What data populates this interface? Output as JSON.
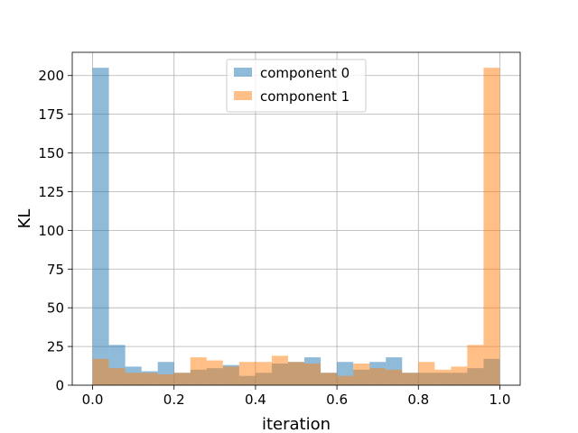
{
  "chart_data": {
    "type": "bar",
    "subtype": "overlaid-histogram",
    "title": "",
    "xlabel": "iteration",
    "ylabel": "KL",
    "xlim": [
      -0.05,
      1.05
    ],
    "ylim": [
      0,
      215
    ],
    "xticks": [
      0.0,
      0.2,
      0.4,
      0.6,
      0.8,
      1.0
    ],
    "xtick_labels": [
      "0.0",
      "0.2",
      "0.4",
      "0.6",
      "0.8",
      "1.0"
    ],
    "yticks": [
      0,
      25,
      50,
      75,
      100,
      125,
      150,
      175,
      200
    ],
    "ytick_labels": [
      "0",
      "25",
      "50",
      "75",
      "100",
      "125",
      "150",
      "175",
      "200"
    ],
    "grid": true,
    "legend_position": "upper center",
    "bin_edges": [
      0.0,
      0.04,
      0.08,
      0.12,
      0.16,
      0.2,
      0.24,
      0.28,
      0.32,
      0.36,
      0.4,
      0.44,
      0.48,
      0.52,
      0.56,
      0.6,
      0.64,
      0.68,
      0.72,
      0.76,
      0.8,
      0.84,
      0.88,
      0.92,
      0.96,
      1.0
    ],
    "series": [
      {
        "name": "component 0",
        "color": "#1f77b4",
        "alpha": 0.5,
        "values": [
          205,
          26,
          12,
          9,
          15,
          8,
          10,
          11,
          13,
          6,
          8,
          14,
          15,
          18,
          8,
          15,
          10,
          15,
          18,
          8,
          8,
          8,
          8,
          11,
          17
        ]
      },
      {
        "name": "component 1",
        "color": "#ff7f0e",
        "alpha": 0.5,
        "values": [
          17,
          11,
          8,
          8,
          7,
          8,
          18,
          16,
          12,
          15,
          15,
          19,
          15,
          14,
          8,
          6,
          14,
          11,
          10,
          8,
          15,
          10,
          12,
          26,
          205
        ]
      }
    ]
  }
}
